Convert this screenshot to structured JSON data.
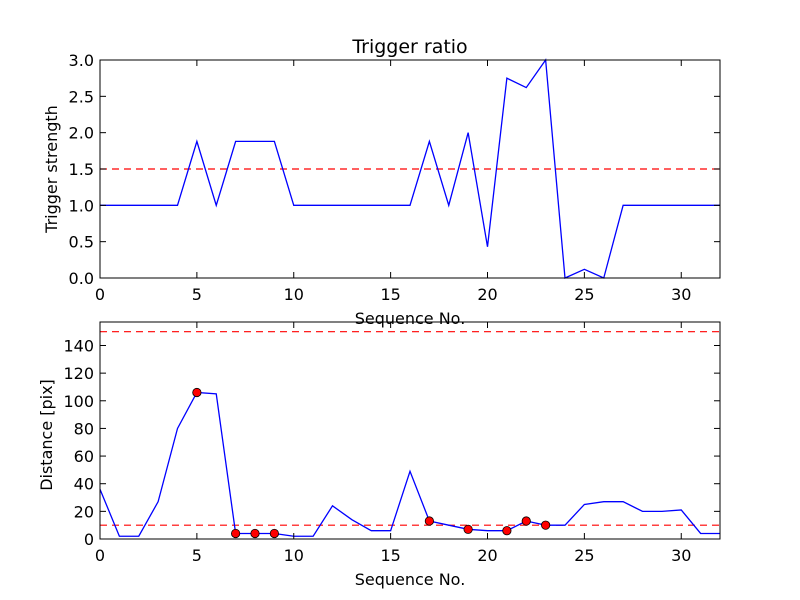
{
  "chart_data": [
    {
      "type": "line",
      "title": "Trigger ratio",
      "xlabel": "Sequence No.",
      "ylabel": "Trigger strength",
      "xlim": [
        0,
        32
      ],
      "ylim": [
        0,
        3.0
      ],
      "xticks": [
        0,
        5,
        10,
        15,
        20,
        25,
        30
      ],
      "yticks": [
        0.0,
        0.5,
        1.0,
        1.5,
        2.0,
        2.5,
        3.0
      ],
      "ytick_labels": [
        "0.0",
        "0.5",
        "1.0",
        "1.5",
        "2.0",
        "2.5",
        "3.0"
      ],
      "grid": false,
      "line_color": "#0000ff",
      "threshold_color": "#ff0000",
      "thresholds": [
        1.5
      ],
      "series": [
        {
          "x": [
            0,
            1,
            2,
            3,
            4,
            5,
            6,
            7,
            8,
            9,
            10,
            11,
            12,
            13,
            14,
            15,
            16,
            17,
            18,
            19,
            20,
            21,
            22,
            23,
            24,
            25,
            26,
            27,
            28,
            29,
            30,
            31,
            32
          ],
          "values": [
            1.0,
            1.0,
            1.0,
            1.0,
            1.0,
            1.88,
            1.0,
            1.88,
            1.88,
            1.88,
            1.0,
            1.0,
            1.0,
            1.0,
            1.0,
            1.0,
            1.0,
            1.88,
            1.0,
            2.0,
            0.43,
            2.75,
            2.62,
            3.0,
            0.0,
            0.12,
            0.0,
            1.0,
            1.0,
            1.0,
            1.0,
            1.0,
            1.0
          ]
        }
      ]
    },
    {
      "type": "line",
      "title": "",
      "xlabel": "Sequence No.",
      "ylabel": "Distance [pix]",
      "xlim": [
        0,
        32
      ],
      "ylim": [
        0,
        157
      ],
      "xticks": [
        0,
        5,
        10,
        15,
        20,
        25,
        30
      ],
      "yticks": [
        0,
        20,
        40,
        60,
        80,
        100,
        120,
        140
      ],
      "ytick_labels": [
        "0",
        "20",
        "40",
        "60",
        "80",
        "100",
        "120",
        "140"
      ],
      "grid": false,
      "line_color": "#0000ff",
      "threshold_color": "#ff0000",
      "marker_color": "#ff0000",
      "thresholds": [
        10,
        150
      ],
      "series": [
        {
          "x": [
            0,
            1,
            2,
            3,
            4,
            5,
            6,
            7,
            8,
            9,
            10,
            11,
            12,
            13,
            14,
            15,
            16,
            17,
            18,
            19,
            20,
            21,
            22,
            23,
            24,
            25,
            26,
            27,
            28,
            29,
            30,
            31,
            32
          ],
          "values": [
            36,
            2,
            2,
            27,
            80,
            106,
            105,
            4,
            4,
            4,
            2,
            2,
            24,
            14,
            6,
            6,
            49,
            13,
            10,
            7,
            6,
            6,
            13,
            10,
            10,
            25,
            27,
            27,
            20,
            20,
            21,
            4,
            4
          ]
        }
      ],
      "markers": {
        "x": [
          5,
          7,
          8,
          9,
          17,
          19,
          21,
          22,
          23
        ],
        "values": [
          106,
          4,
          4,
          4,
          13,
          7,
          6,
          13,
          10
        ]
      }
    }
  ]
}
